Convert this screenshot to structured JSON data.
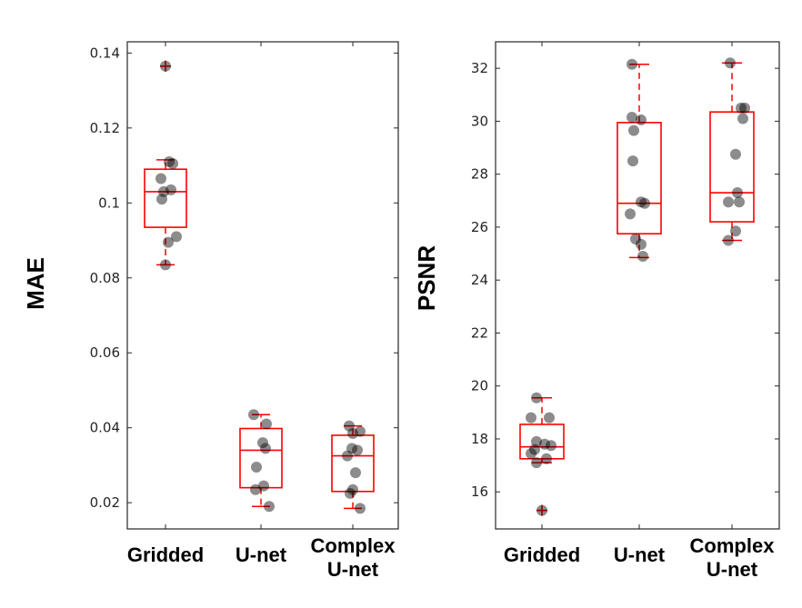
{
  "chart_data": [
    {
      "type": "box",
      "title": "",
      "ylabel": "MAE",
      "ylim": [
        0.013,
        0.143
      ],
      "yticks": [
        0.02,
        0.04,
        0.06,
        0.08,
        0.1,
        0.12,
        0.14
      ],
      "ytick_labels": [
        "0.02",
        "0.04",
        "0.06",
        "0.08",
        "0.1",
        "0.12",
        "0.14"
      ],
      "categories": [
        "Gridded",
        "U-net",
        "Complex U-net"
      ],
      "category_lines": [
        [
          "Gridded"
        ],
        [
          "U-net"
        ],
        [
          "Complex",
          "U-net"
        ]
      ],
      "box_color": "#ff0000",
      "point_color": "#808080",
      "boxes": [
        {
          "lower_whisker": 0.0835,
          "q1": 0.0935,
          "median": 0.103,
          "q3": 0.109,
          "upper_whisker": 0.1115,
          "outliers": [
            0.1365
          ]
        },
        {
          "lower_whisker": 0.019,
          "q1": 0.024,
          "median": 0.034,
          "q3": 0.0398,
          "upper_whisker": 0.0435,
          "outliers": []
        },
        {
          "lower_whisker": 0.0185,
          "q1": 0.023,
          "median": 0.0325,
          "q3": 0.038,
          "upper_whisker": 0.0405,
          "outliers": []
        }
      ],
      "points": [
        [
          0.1365,
          0.111,
          0.1105,
          0.1065,
          0.1035,
          0.103,
          0.101,
          0.091,
          0.0895,
          0.0835
        ],
        [
          0.0435,
          0.041,
          0.036,
          0.0345,
          0.0295,
          0.0245,
          0.0235,
          0.019
        ],
        [
          0.0405,
          0.039,
          0.0385,
          0.0345,
          0.034,
          0.0325,
          0.028,
          0.0235,
          0.0225,
          0.0185
        ]
      ],
      "jitter": [
        [
          0,
          4,
          8,
          -5,
          6,
          -2,
          -4,
          12,
          3,
          0
        ],
        [
          -8,
          6,
          2,
          5,
          -5,
          3,
          -6,
          9
        ],
        [
          -4,
          8,
          0,
          -1,
          5,
          -6,
          3,
          0,
          -3,
          8
        ]
      ]
    },
    {
      "type": "box",
      "title": "",
      "ylabel": "PSNR",
      "ylim": [
        14.6,
        33.0
      ],
      "yticks": [
        16,
        18,
        20,
        22,
        24,
        26,
        28,
        30,
        32
      ],
      "ytick_labels": [
        "16",
        "18",
        "20",
        "22",
        "24",
        "26",
        "28",
        "30",
        "32"
      ],
      "categories": [
        "Gridded",
        "U-net",
        "Complex U-net"
      ],
      "category_lines": [
        [
          "Gridded"
        ],
        [
          "U-net"
        ],
        [
          "Complex",
          "U-net"
        ]
      ],
      "box_color": "#ff0000",
      "point_color": "#808080",
      "boxes": [
        {
          "lower_whisker": 17.1,
          "q1": 17.25,
          "median": 17.7,
          "q3": 18.55,
          "upper_whisker": 19.55,
          "outliers": [
            15.3
          ]
        },
        {
          "lower_whisker": 24.85,
          "q1": 25.75,
          "median": 26.9,
          "q3": 29.95,
          "upper_whisker": 32.15,
          "outliers": []
        },
        {
          "lower_whisker": 25.5,
          "q1": 26.2,
          "median": 27.3,
          "q3": 30.35,
          "upper_whisker": 32.2,
          "outliers": []
        }
      ],
      "points": [
        [
          19.55,
          18.8,
          18.8,
          17.9,
          17.8,
          17.75,
          17.6,
          17.45,
          17.25,
          17.1,
          15.3
        ],
        [
          32.15,
          30.15,
          30.05,
          29.65,
          28.5,
          26.95,
          26.9,
          26.5,
          25.55,
          25.35,
          24.9
        ],
        [
          32.2,
          30.5,
          30.5,
          30.1,
          28.75,
          27.3,
          26.95,
          26.95,
          25.85,
          25.5
        ]
      ],
      "jitter": [
        [
          -6,
          -12,
          8,
          -6,
          3,
          10,
          -8,
          -12,
          5,
          -6,
          0
        ],
        [
          -8,
          -8,
          2,
          -6,
          -7,
          2,
          6,
          -10,
          -4,
          2,
          4
        ],
        [
          -2,
          10,
          14,
          12,
          4,
          6,
          8,
          -4,
          4,
          -4
        ]
      ]
    }
  ]
}
